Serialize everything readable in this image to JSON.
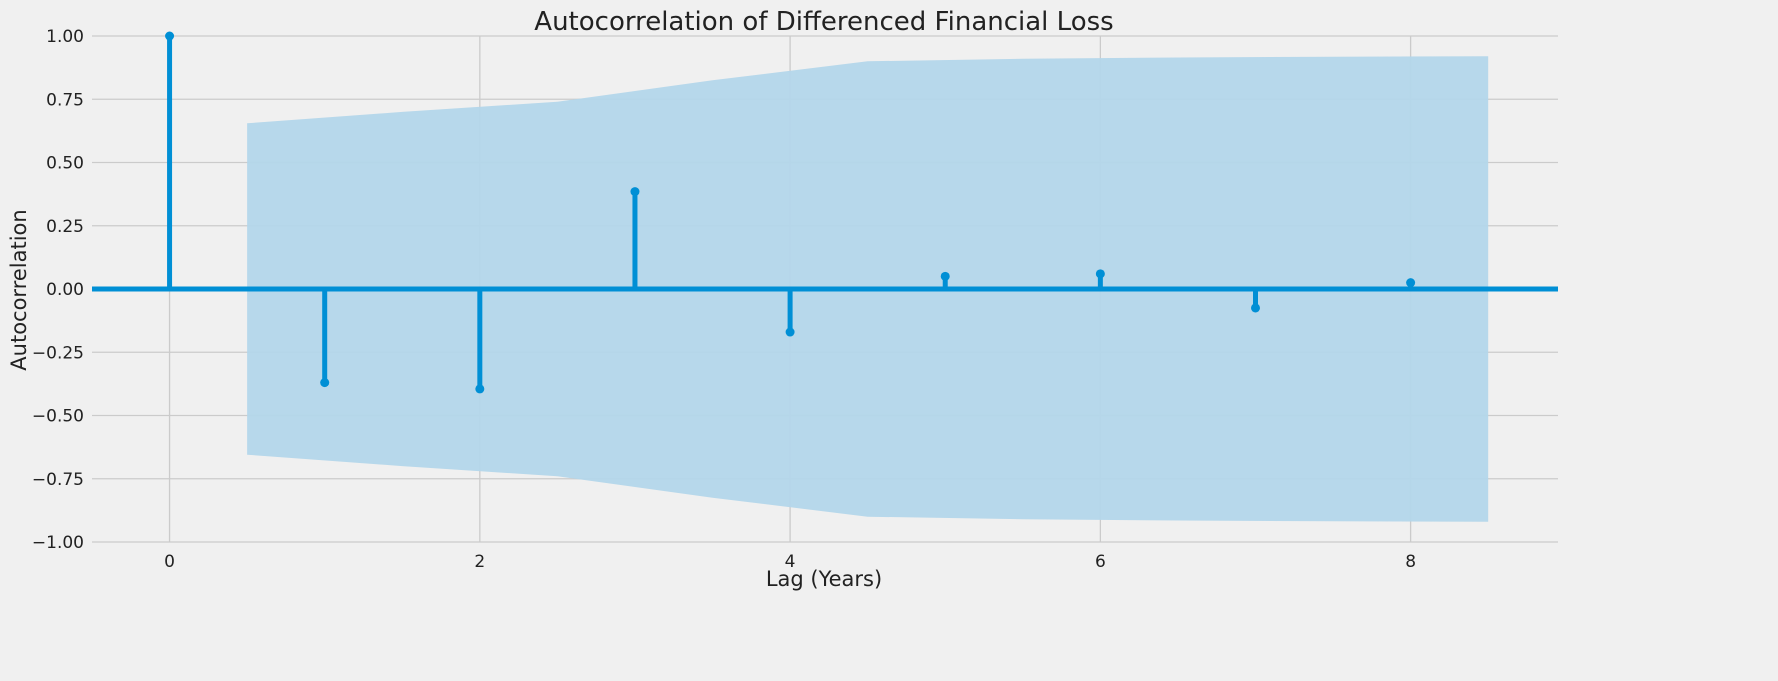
{
  "chart_data": {
    "type": "stem",
    "title": "Autocorrelation of Differenced Financial Loss",
    "xlabel": "Lag (Years)",
    "ylabel": "Autocorrelation",
    "xlim": [
      -0.5,
      8.95
    ],
    "ylim": [
      -1.0,
      1.0
    ],
    "xticks": [
      0,
      2,
      4,
      6,
      8
    ],
    "xtick_labels": [
      "0",
      "2",
      "4",
      "6",
      "8"
    ],
    "yticks": [
      -1.0,
      -0.75,
      -0.5,
      -0.25,
      0.0,
      0.25,
      0.5,
      0.75,
      1.0
    ],
    "ytick_labels": [
      "−1.00",
      "−0.75",
      "−0.50",
      "−0.25",
      "0.00",
      "0.25",
      "0.50",
      "0.75",
      "1.00"
    ],
    "grid": true,
    "lags": [
      0,
      1,
      2,
      3,
      4,
      5,
      6,
      7,
      8
    ],
    "values": [
      1.0,
      -0.37,
      -0.395,
      0.385,
      -0.17,
      0.05,
      0.06,
      -0.075,
      0.025
    ],
    "confidence_band": {
      "x": [
        0.5,
        1.5,
        2.5,
        3.5,
        4.5,
        5.5,
        6.5,
        7.5,
        8.5
      ],
      "upper": [
        0.655,
        0.7,
        0.74,
        0.825,
        0.9,
        0.91,
        0.915,
        0.918,
        0.92
      ]
    },
    "colors": {
      "stem": "#008fd5",
      "band": "#b3d6ea",
      "background": "#f0f0f0",
      "grid": "#cbcbcb",
      "text": "#222222"
    }
  }
}
